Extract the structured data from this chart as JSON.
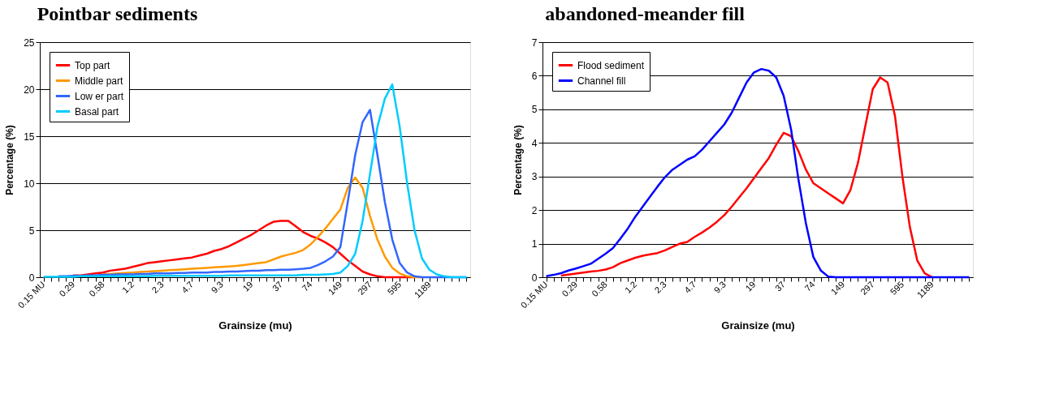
{
  "chart_data": [
    {
      "type": "line",
      "title": "Pointbar sediments",
      "xlabel": "Grainsize (mu)",
      "ylabel": "Percentage (%)",
      "categories": [
        "0.15 MU",
        null,
        null,
        null,
        "0.29",
        null,
        null,
        null,
        "0.58",
        null,
        null,
        null,
        "1.2",
        null,
        null,
        null,
        "2.3",
        null,
        null,
        null,
        "4.7",
        null,
        null,
        null,
        "9.3",
        null,
        null,
        null,
        "19",
        null,
        null,
        null,
        "37",
        null,
        null,
        null,
        "74",
        null,
        null,
        null,
        "149",
        null,
        null,
        null,
        "297",
        null,
        null,
        null,
        "595",
        null,
        null,
        null,
        "1189",
        null,
        null,
        null,
        null,
        null
      ],
      "ylim": [
        0,
        25
      ],
      "yticks": [
        0,
        5,
        10,
        15,
        20,
        25
      ],
      "grid": "y",
      "legend": "top left",
      "series": [
        {
          "name": "Top part",
          "color": "#ff0000",
          "values": [
            null,
            null,
            null,
            null,
            0.2,
            0.2,
            0.3,
            0.4,
            0.5,
            0.7,
            0.8,
            0.9,
            1.1,
            1.3,
            1.5,
            1.6,
            1.7,
            1.8,
            1.9,
            2.0,
            2.1,
            2.3,
            2.5,
            2.8,
            3.0,
            3.3,
            3.7,
            4.1,
            4.5,
            5.0,
            5.5,
            5.9,
            6.0,
            6.0,
            5.4,
            4.8,
            4.4,
            4.1,
            3.7,
            3.2,
            2.5,
            1.8,
            1.2,
            0.6,
            0.3,
            0.1,
            0,
            0,
            0,
            0,
            0,
            null,
            null,
            null,
            null,
            null,
            null,
            null
          ]
        },
        {
          "name": "Middle part",
          "color": "#ff9900",
          "values": [
            null,
            null,
            null,
            null,
            null,
            null,
            null,
            null,
            0.3,
            0.35,
            0.4,
            0.45,
            0.5,
            0.55,
            0.6,
            0.65,
            0.7,
            0.75,
            0.8,
            0.85,
            0.9,
            0.95,
            1.0,
            1.05,
            1.1,
            1.15,
            1.2,
            1.3,
            1.4,
            1.5,
            1.6,
            1.9,
            2.2,
            2.4,
            2.6,
            2.9,
            3.5,
            4.3,
            5.2,
            6.2,
            7.2,
            9.5,
            10.6,
            9.5,
            6.5,
            4.0,
            2.2,
            1.0,
            0.4,
            0.1,
            0,
            0,
            null,
            null,
            null,
            null,
            null,
            null
          ]
        },
        {
          "name": "Low er part",
          "color": "#3366ff",
          "values": [
            null,
            null,
            0.1,
            0.1,
            0.15,
            0.15,
            0.2,
            0.2,
            0.25,
            0.25,
            0.3,
            0.3,
            0.3,
            0.35,
            0.35,
            0.4,
            0.4,
            0.4,
            0.45,
            0.45,
            0.5,
            0.5,
            0.5,
            0.55,
            0.55,
            0.6,
            0.6,
            0.65,
            0.7,
            0.7,
            0.75,
            0.75,
            0.8,
            0.8,
            0.85,
            0.9,
            1.0,
            1.3,
            1.7,
            2.2,
            3.2,
            8.0,
            13.0,
            16.5,
            17.8,
            13.0,
            8.0,
            4.0,
            1.5,
            0.5,
            0.1,
            0,
            0,
            0,
            0,
            0,
            0,
            0
          ]
        },
        {
          "name": "Basal part",
          "color": "#00ccff",
          "values": [
            0.05,
            0.05,
            0.05,
            0.05,
            0.05,
            0.1,
            0.1,
            0.1,
            0.1,
            0.1,
            0.1,
            0.1,
            0.1,
            0.1,
            0.1,
            0.15,
            0.15,
            0.15,
            0.15,
            0.15,
            0.15,
            0.15,
            0.15,
            0.15,
            0.15,
            0.2,
            0.2,
            0.2,
            0.2,
            0.2,
            0.2,
            0.2,
            0.2,
            0.2,
            0.2,
            0.25,
            0.25,
            0.25,
            0.3,
            0.35,
            0.5,
            1.2,
            2.5,
            6.0,
            11.0,
            16.0,
            19.0,
            20.5,
            16.0,
            10.0,
            5.0,
            2.0,
            0.8,
            0.3,
            0.1,
            0,
            0,
            0
          ]
        }
      ]
    },
    {
      "type": "line",
      "title": "abandoned-meander fill",
      "xlabel": "Grainsize (mu)",
      "ylabel": "Percentage (%)",
      "categories": [
        "0.15 MU",
        null,
        null,
        null,
        "0.29",
        null,
        null,
        null,
        "0.58",
        null,
        null,
        null,
        "1.2",
        null,
        null,
        null,
        "2.3",
        null,
        null,
        null,
        "4.7",
        null,
        null,
        null,
        "9.3",
        null,
        null,
        null,
        "19",
        null,
        null,
        null,
        "37",
        null,
        null,
        null,
        "74",
        null,
        null,
        null,
        "149",
        null,
        null,
        null,
        "297",
        null,
        null,
        null,
        "595",
        null,
        null,
        null,
        "1189",
        null,
        null,
        null,
        null,
        null
      ],
      "ylim": [
        0,
        7
      ],
      "yticks": [
        0,
        1,
        2,
        3,
        4,
        5,
        6,
        7
      ],
      "grid": "y",
      "legend": "top left",
      "series": [
        {
          "name": "Flood sediment",
          "color": "#ff0000",
          "values": [
            null,
            null,
            0.05,
            0.08,
            0.11,
            0.14,
            0.17,
            0.19,
            0.23,
            0.3,
            0.42,
            0.5,
            0.58,
            0.64,
            0.68,
            0.72,
            0.8,
            0.9,
            1.0,
            1.05,
            1.2,
            1.33,
            1.48,
            1.65,
            1.85,
            2.1,
            2.38,
            2.65,
            2.95,
            3.25,
            3.55,
            3.95,
            4.3,
            4.2,
            3.75,
            3.2,
            2.8,
            2.65,
            2.5,
            2.35,
            2.2,
            2.6,
            3.4,
            4.5,
            5.6,
            5.95,
            5.8,
            4.8,
            3.0,
            1.5,
            0.5,
            0.12,
            0,
            null,
            null,
            null,
            null,
            null
          ]
        },
        {
          "name": "Channel fill",
          "color": "#0000ff",
          "values": [
            0.03,
            0.07,
            0.12,
            0.2,
            0.26,
            0.33,
            0.4,
            0.55,
            0.7,
            0.87,
            1.15,
            1.45,
            1.8,
            2.1,
            2.4,
            2.7,
            2.98,
            3.2,
            3.35,
            3.5,
            3.6,
            3.8,
            4.05,
            4.3,
            4.55,
            4.9,
            5.35,
            5.8,
            6.1,
            6.2,
            6.15,
            5.95,
            5.4,
            4.4,
            2.9,
            1.6,
            0.6,
            0.2,
            0.02,
            0,
            0,
            0,
            0,
            0,
            0,
            0,
            0,
            0,
            0,
            0,
            0,
            0,
            0,
            0,
            0,
            0,
            0,
            0
          ]
        }
      ]
    }
  ]
}
